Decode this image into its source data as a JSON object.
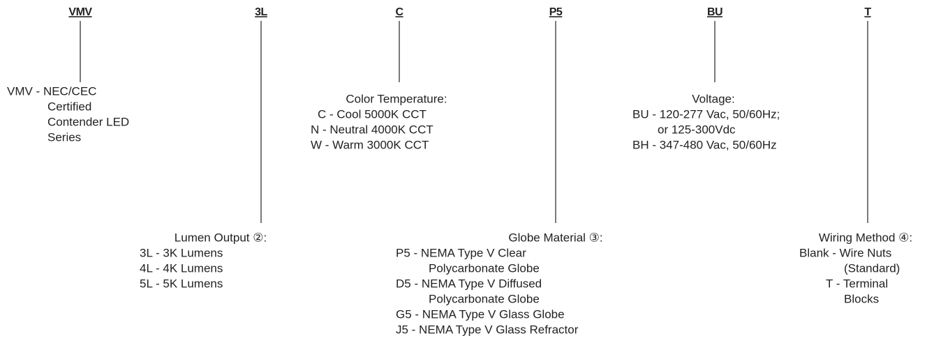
{
  "fields": [
    {
      "code": "VMV",
      "lines": [
        "VMV - NEC/CEC",
        "Certified",
        "Contender LED",
        "Series"
      ]
    },
    {
      "code": "3L",
      "heading": "Lumen Output ②:",
      "lines": [
        "3L - 3K Lumens",
        "4L - 4K Lumens",
        "5L - 5K Lumens"
      ]
    },
    {
      "code": "C",
      "heading": "Color Temperature:",
      "lines": [
        "C - Cool 5000K CCT",
        "N - Neutral 4000K CCT",
        "W - Warm 3000K CCT"
      ]
    },
    {
      "code": "P5",
      "heading": "Globe Material ③:",
      "lines": [
        "P5 - NEMA Type V Clear",
        "Polycarbonate Globe",
        "D5 - NEMA Type V Diffused",
        "Polycarbonate Globe",
        "G5 - NEMA Type V Glass Globe",
        "J5 - NEMA Type V Glass Refractor"
      ]
    },
    {
      "code": "BU",
      "heading": "Voltage:",
      "lines": [
        "BU - 120-277 Vac, 50/60Hz;",
        "or 125-300Vdc",
        "BH - 347-480 Vac, 50/60Hz"
      ]
    },
    {
      "code": "T",
      "heading": "Wiring Method ④:",
      "lines": [
        "Blank - Wire Nuts",
        "(Standard)",
        "T - Terminal",
        "Blocks"
      ]
    }
  ]
}
